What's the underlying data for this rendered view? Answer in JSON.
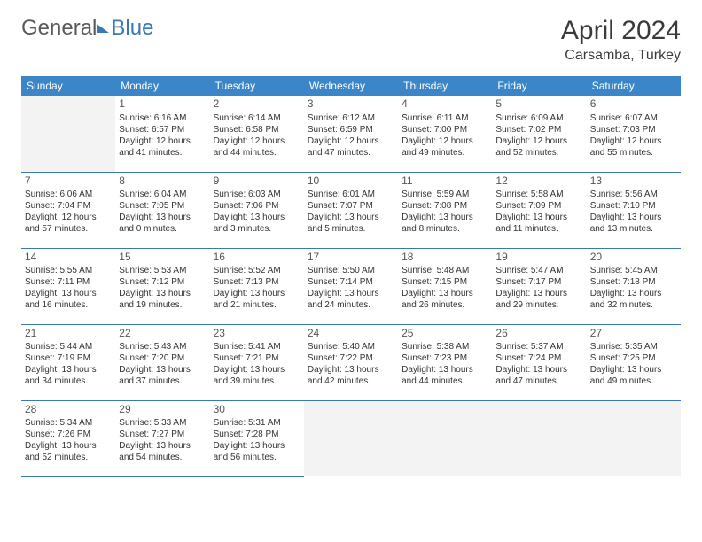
{
  "logo": {
    "general": "General",
    "blue": "Blue"
  },
  "title": "April 2024",
  "location": "Carsamba, Turkey",
  "days_of_week": [
    "Sunday",
    "Monday",
    "Tuesday",
    "Wednesday",
    "Thursday",
    "Friday",
    "Saturday"
  ],
  "header_bg": "#3a86c8",
  "border_color": "#3a78b5",
  "weeks": [
    [
      null,
      {
        "n": "1",
        "sr": "6:16 AM",
        "ss": "6:57 PM",
        "dl1": "Daylight: 12 hours",
        "dl2": "and 41 minutes."
      },
      {
        "n": "2",
        "sr": "6:14 AM",
        "ss": "6:58 PM",
        "dl1": "Daylight: 12 hours",
        "dl2": "and 44 minutes."
      },
      {
        "n": "3",
        "sr": "6:12 AM",
        "ss": "6:59 PM",
        "dl1": "Daylight: 12 hours",
        "dl2": "and 47 minutes."
      },
      {
        "n": "4",
        "sr": "6:11 AM",
        "ss": "7:00 PM",
        "dl1": "Daylight: 12 hours",
        "dl2": "and 49 minutes."
      },
      {
        "n": "5",
        "sr": "6:09 AM",
        "ss": "7:02 PM",
        "dl1": "Daylight: 12 hours",
        "dl2": "and 52 minutes."
      },
      {
        "n": "6",
        "sr": "6:07 AM",
        "ss": "7:03 PM",
        "dl1": "Daylight: 12 hours",
        "dl2": "and 55 minutes."
      }
    ],
    [
      {
        "n": "7",
        "sr": "6:06 AM",
        "ss": "7:04 PM",
        "dl1": "Daylight: 12 hours",
        "dl2": "and 57 minutes."
      },
      {
        "n": "8",
        "sr": "6:04 AM",
        "ss": "7:05 PM",
        "dl1": "Daylight: 13 hours",
        "dl2": "and 0 minutes."
      },
      {
        "n": "9",
        "sr": "6:03 AM",
        "ss": "7:06 PM",
        "dl1": "Daylight: 13 hours",
        "dl2": "and 3 minutes."
      },
      {
        "n": "10",
        "sr": "6:01 AM",
        "ss": "7:07 PM",
        "dl1": "Daylight: 13 hours",
        "dl2": "and 5 minutes."
      },
      {
        "n": "11",
        "sr": "5:59 AM",
        "ss": "7:08 PM",
        "dl1": "Daylight: 13 hours",
        "dl2": "and 8 minutes."
      },
      {
        "n": "12",
        "sr": "5:58 AM",
        "ss": "7:09 PM",
        "dl1": "Daylight: 13 hours",
        "dl2": "and 11 minutes."
      },
      {
        "n": "13",
        "sr": "5:56 AM",
        "ss": "7:10 PM",
        "dl1": "Daylight: 13 hours",
        "dl2": "and 13 minutes."
      }
    ],
    [
      {
        "n": "14",
        "sr": "5:55 AM",
        "ss": "7:11 PM",
        "dl1": "Daylight: 13 hours",
        "dl2": "and 16 minutes."
      },
      {
        "n": "15",
        "sr": "5:53 AM",
        "ss": "7:12 PM",
        "dl1": "Daylight: 13 hours",
        "dl2": "and 19 minutes."
      },
      {
        "n": "16",
        "sr": "5:52 AM",
        "ss": "7:13 PM",
        "dl1": "Daylight: 13 hours",
        "dl2": "and 21 minutes."
      },
      {
        "n": "17",
        "sr": "5:50 AM",
        "ss": "7:14 PM",
        "dl1": "Daylight: 13 hours",
        "dl2": "and 24 minutes."
      },
      {
        "n": "18",
        "sr": "5:48 AM",
        "ss": "7:15 PM",
        "dl1": "Daylight: 13 hours",
        "dl2": "and 26 minutes."
      },
      {
        "n": "19",
        "sr": "5:47 AM",
        "ss": "7:17 PM",
        "dl1": "Daylight: 13 hours",
        "dl2": "and 29 minutes."
      },
      {
        "n": "20",
        "sr": "5:45 AM",
        "ss": "7:18 PM",
        "dl1": "Daylight: 13 hours",
        "dl2": "and 32 minutes."
      }
    ],
    [
      {
        "n": "21",
        "sr": "5:44 AM",
        "ss": "7:19 PM",
        "dl1": "Daylight: 13 hours",
        "dl2": "and 34 minutes."
      },
      {
        "n": "22",
        "sr": "5:43 AM",
        "ss": "7:20 PM",
        "dl1": "Daylight: 13 hours",
        "dl2": "and 37 minutes."
      },
      {
        "n": "23",
        "sr": "5:41 AM",
        "ss": "7:21 PM",
        "dl1": "Daylight: 13 hours",
        "dl2": "and 39 minutes."
      },
      {
        "n": "24",
        "sr": "5:40 AM",
        "ss": "7:22 PM",
        "dl1": "Daylight: 13 hours",
        "dl2": "and 42 minutes."
      },
      {
        "n": "25",
        "sr": "5:38 AM",
        "ss": "7:23 PM",
        "dl1": "Daylight: 13 hours",
        "dl2": "and 44 minutes."
      },
      {
        "n": "26",
        "sr": "5:37 AM",
        "ss": "7:24 PM",
        "dl1": "Daylight: 13 hours",
        "dl2": "and 47 minutes."
      },
      {
        "n": "27",
        "sr": "5:35 AM",
        "ss": "7:25 PM",
        "dl1": "Daylight: 13 hours",
        "dl2": "and 49 minutes."
      }
    ],
    [
      {
        "n": "28",
        "sr": "5:34 AM",
        "ss": "7:26 PM",
        "dl1": "Daylight: 13 hours",
        "dl2": "and 52 minutes."
      },
      {
        "n": "29",
        "sr": "5:33 AM",
        "ss": "7:27 PM",
        "dl1": "Daylight: 13 hours",
        "dl2": "and 54 minutes."
      },
      {
        "n": "30",
        "sr": "5:31 AM",
        "ss": "7:28 PM",
        "dl1": "Daylight: 13 hours",
        "dl2": "and 56 minutes."
      },
      null,
      null,
      null,
      null
    ]
  ]
}
